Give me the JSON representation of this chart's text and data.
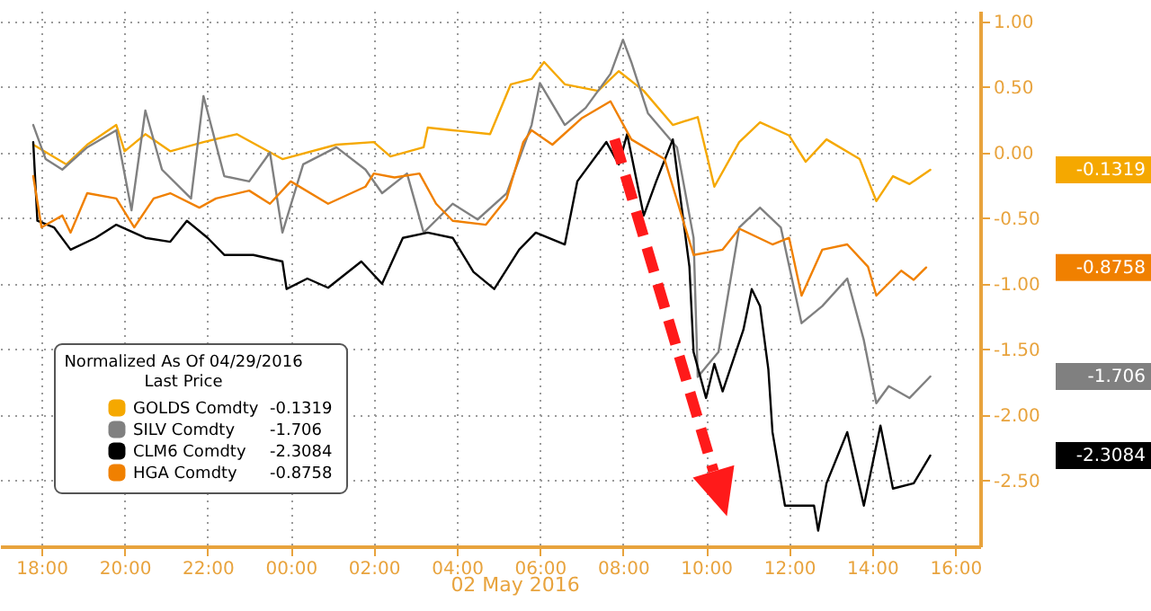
{
  "chart_data": {
    "type": "line",
    "legend_title": "Normalized As Of 04/29/2016\nLast Price",
    "series": [
      {
        "name": "GOLDS Comdty",
        "color": "#f5a800",
        "x": [
          "2016-05-01T17:48",
          "2016-05-01T18:36",
          "2016-05-01T19:06",
          "2016-05-01T19:48",
          "2016-05-01T20:00",
          "2016-05-01T20:30",
          "2016-05-01T21:06",
          "2016-05-01T21:54",
          "2016-05-01T22:42",
          "2016-05-01T23:48",
          "2016-05-02T01:06",
          "2016-05-02T02:00",
          "2016-05-02T02:24",
          "2016-05-02T03:12",
          "2016-05-02T03:18",
          "2016-05-02T03:54",
          "2016-05-02T04:48",
          "2016-05-02T05:18",
          "2016-05-02T05:48",
          "2016-05-02T06:06",
          "2016-05-02T06:36",
          "2016-05-02T07:24",
          "2016-05-02T07:54",
          "2016-05-02T08:30",
          "2016-05-02T09:12",
          "2016-05-02T09:48",
          "2016-05-02T10:12",
          "2016-05-02T10:48",
          "2016-05-02T11:18",
          "2016-05-02T12:00",
          "2016-05-02T12:24",
          "2016-05-02T12:54",
          "2016-05-02T13:42",
          "2016-05-02T14:06",
          "2016-05-02T14:30",
          "2016-05-02T14:54",
          "2016-05-02T15:24"
        ],
        "values": [
          0.06,
          -0.09,
          0.06,
          0.21,
          0.01,
          0.14,
          0.01,
          0.08,
          0.14,
          -0.05,
          0.06,
          0.08,
          -0.03,
          0.04,
          0.19,
          0.17,
          0.14,
          0.52,
          0.56,
          0.69,
          0.52,
          0.47,
          0.62,
          0.47,
          0.21,
          0.27,
          -0.26,
          0.08,
          0.23,
          0.13,
          -0.07,
          0.1,
          -0.05,
          -0.37,
          -0.18,
          -0.24,
          -0.1319
        ]
      },
      {
        "name": "SILV Comdty",
        "color": "#808080",
        "x": [
          "2016-05-01T17:48",
          "2016-05-01T18:06",
          "2016-05-01T18:30",
          "2016-05-01T19:06",
          "2016-05-01T19:48",
          "2016-05-01T20:10",
          "2016-05-01T20:30",
          "2016-05-01T20:54",
          "2016-05-01T21:36",
          "2016-05-01T21:54",
          "2016-05-01T22:24",
          "2016-05-01T23:00",
          "2016-05-01T23:30",
          "2016-05-01T23:48",
          "2016-05-02T00:18",
          "2016-05-02T01:06",
          "2016-05-02T01:48",
          "2016-05-02T02:12",
          "2016-05-02T02:48",
          "2016-05-02T03:12",
          "2016-05-02T03:54",
          "2016-05-02T04:30",
          "2016-05-02T05:12",
          "2016-05-02T05:48",
          "2016-05-02T06:00",
          "2016-05-02T06:36",
          "2016-05-02T07:06",
          "2016-05-02T07:42",
          "2016-05-02T08:00",
          "2016-05-02T08:12",
          "2016-05-02T08:36",
          "2016-05-02T09:18",
          "2016-05-02T09:42",
          "2016-05-02T09:48",
          "2016-05-02T10:18",
          "2016-05-02T10:48",
          "2016-05-02T11:18",
          "2016-05-02T11:48",
          "2016-05-02T12:18",
          "2016-05-02T12:48",
          "2016-05-02T13:24",
          "2016-05-02T13:48",
          "2016-05-02T14:06",
          "2016-05-02T14:24",
          "2016-05-02T14:54",
          "2016-05-02T15:24"
        ],
        "values": [
          0.21,
          -0.05,
          -0.13,
          0.04,
          0.17,
          -0.44,
          0.32,
          -0.13,
          -0.35,
          0.43,
          -0.18,
          -0.22,
          0.0,
          -0.61,
          -0.09,
          0.04,
          -0.13,
          -0.31,
          -0.16,
          -0.61,
          -0.39,
          -0.51,
          -0.31,
          0.21,
          0.53,
          0.21,
          0.34,
          0.6,
          0.86,
          0.69,
          0.3,
          0.04,
          -0.65,
          -1.71,
          -1.52,
          -0.57,
          -0.42,
          -0.57,
          -1.3,
          -1.17,
          -0.96,
          -1.43,
          -1.91,
          -1.78,
          -1.87,
          -1.706
        ]
      },
      {
        "name": "CLM6 Comdty",
        "color": "#000000",
        "x": [
          "2016-05-01T17:48",
          "2016-05-01T17:54",
          "2016-05-01T18:18",
          "2016-05-01T18:42",
          "2016-05-01T19:18",
          "2016-05-01T19:48",
          "2016-05-01T20:30",
          "2016-05-01T21:06",
          "2016-05-01T21:30",
          "2016-05-01T22:00",
          "2016-05-01T22:24",
          "2016-05-01T23:06",
          "2016-05-01T23:48",
          "2016-05-01T23:54",
          "2016-05-02T00:24",
          "2016-05-02T00:54",
          "2016-05-02T01:42",
          "2016-05-02T02:12",
          "2016-05-02T02:42",
          "2016-05-02T03:18",
          "2016-05-02T03:54",
          "2016-05-02T04:24",
          "2016-05-02T04:54",
          "2016-05-02T05:30",
          "2016-05-02T05:54",
          "2016-05-02T06:36",
          "2016-05-02T06:54",
          "2016-05-02T07:36",
          "2016-05-02T07:54",
          "2016-05-02T08:06",
          "2016-05-02T08:30",
          "2016-05-02T08:48",
          "2016-05-02T09:12",
          "2016-05-02T09:36",
          "2016-05-02T09:42",
          "2016-05-02T10:00",
          "2016-05-02T10:12",
          "2016-05-02T10:24",
          "2016-05-02T10:54",
          "2016-05-02T11:06",
          "2016-05-02T11:18",
          "2016-05-02T11:30",
          "2016-05-02T11:36",
          "2016-05-02T11:54",
          "2016-05-02T12:36",
          "2016-05-02T12:42",
          "2016-05-02T12:54",
          "2016-05-02T13:24",
          "2016-05-02T13:48",
          "2016-05-02T14:12",
          "2016-05-02T14:30",
          "2016-05-02T15:00",
          "2016-05-02T15:24"
        ],
        "values": [
          0.08,
          -0.52,
          -0.57,
          -0.74,
          -0.65,
          -0.55,
          -0.65,
          -0.68,
          -0.52,
          -0.65,
          -0.78,
          -0.78,
          -0.83,
          -1.04,
          -0.96,
          -1.03,
          -0.83,
          -1.0,
          -0.65,
          -0.61,
          -0.65,
          -0.91,
          -1.04,
          -0.74,
          -0.61,
          -0.7,
          -0.22,
          0.08,
          -0.09,
          0.14,
          -0.48,
          -0.22,
          0.1,
          -0.87,
          -1.52,
          -1.87,
          -1.61,
          -1.82,
          -1.35,
          -1.04,
          -1.17,
          -1.65,
          -2.13,
          -2.69,
          -2.69,
          -2.88,
          -2.52,
          -2.13,
          -2.69,
          -2.08,
          -2.56,
          -2.52,
          -2.3084
        ]
      },
      {
        "name": "HGA Comdty",
        "color": "#f08000",
        "x": [
          "2016-05-01T17:48",
          "2016-05-01T18:00",
          "2016-05-01T18:30",
          "2016-05-01T18:42",
          "2016-05-01T19:06",
          "2016-05-01T19:48",
          "2016-05-01T20:14",
          "2016-05-01T20:42",
          "2016-05-01T21:06",
          "2016-05-01T21:48",
          "2016-05-01T22:12",
          "2016-05-01T23:00",
          "2016-05-01T23:30",
          "2016-05-02T00:00",
          "2016-05-02T00:54",
          "2016-05-02T01:48",
          "2016-05-02T02:00",
          "2016-05-02T02:30",
          "2016-05-02T03:06",
          "2016-05-02T03:30",
          "2016-05-02T03:54",
          "2016-05-02T04:42",
          "2016-05-02T05:12",
          "2016-05-02T05:36",
          "2016-05-02T05:48",
          "2016-05-02T06:18",
          "2016-05-02T07:00",
          "2016-05-02T07:42",
          "2016-05-02T08:12",
          "2016-05-02T09:00",
          "2016-05-02T09:42",
          "2016-05-02T10:24",
          "2016-05-02T10:48",
          "2016-05-02T11:36",
          "2016-05-02T12:00",
          "2016-05-02T12:18",
          "2016-05-02T12:48",
          "2016-05-02T13:24",
          "2016-05-02T13:54",
          "2016-05-02T14:06",
          "2016-05-02T14:42",
          "2016-05-02T15:00",
          "2016-05-02T15:18"
        ],
        "values": [
          -0.18,
          -0.57,
          -0.48,
          -0.61,
          -0.31,
          -0.35,
          -0.57,
          -0.35,
          -0.31,
          -0.42,
          -0.35,
          -0.29,
          -0.39,
          -0.22,
          -0.39,
          -0.26,
          -0.16,
          -0.19,
          -0.16,
          -0.39,
          -0.52,
          -0.55,
          -0.35,
          0.08,
          0.17,
          0.06,
          0.26,
          0.39,
          0.1,
          -0.05,
          -0.78,
          -0.74,
          -0.58,
          -0.7,
          -0.65,
          -1.09,
          -0.74,
          -0.7,
          -0.87,
          -1.09,
          -0.9,
          -0.97,
          -0.8758
        ]
      }
    ],
    "xlim": [
      "2016-05-01T17:00",
      "2016-05-02T16:36"
    ],
    "xticks": [
      {
        "value": "2016-05-01T18:00",
        "label": "18:00"
      },
      {
        "value": "2016-05-01T20:00",
        "label": "20:00"
      },
      {
        "value": "2016-05-01T22:00",
        "label": "22:00"
      },
      {
        "value": "2016-05-02T00:00",
        "label": "00:00"
      },
      {
        "value": "2016-05-02T02:00",
        "label": "02:00"
      },
      {
        "value": "2016-05-02T04:00",
        "label": "04:00"
      },
      {
        "value": "2016-05-02T06:00",
        "label": "06:00"
      },
      {
        "value": "2016-05-02T08:00",
        "label": "08:00"
      },
      {
        "value": "2016-05-02T10:00",
        "label": "10:00"
      },
      {
        "value": "2016-05-02T12:00",
        "label": "12:00"
      },
      {
        "value": "2016-05-02T14:00",
        "label": "14:00"
      },
      {
        "value": "2016-05-02T16:00",
        "label": "16:00"
      }
    ],
    "ylim": [
      -3.0,
      1.08
    ],
    "yticks": [
      {
        "value": 1,
        "label": "1.00"
      },
      {
        "value": 0.5,
        "label": "0.50"
      },
      {
        "value": 0,
        "label": "0.00"
      },
      {
        "value": -0.5,
        "label": "-0.50"
      },
      {
        "value": -1,
        "label": "-1.00"
      },
      {
        "value": -1.5,
        "label": "-1.50"
      },
      {
        "value": -2,
        "label": "-2.00"
      },
      {
        "value": -2.5,
        "label": "-2.50"
      }
    ],
    "annotations": [
      "02 May 2016",
      "-0.1319",
      "-1.706",
      "-2.3084",
      "-0.8758"
    ],
    "grid": true,
    "legend": "bottom left",
    "line_style": "solid"
  }
}
